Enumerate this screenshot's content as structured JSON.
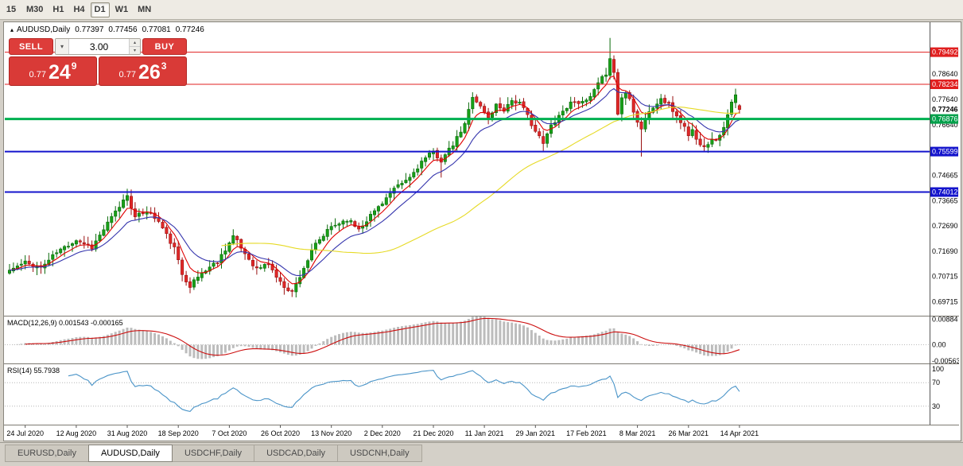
{
  "toolbar": {
    "timeframes": [
      {
        "label": "15",
        "active": false
      },
      {
        "label": "M30",
        "active": false
      },
      {
        "label": "H1",
        "active": false
      },
      {
        "label": "H4",
        "active": false
      },
      {
        "label": "D1",
        "active": true
      },
      {
        "label": "W1",
        "active": false
      },
      {
        "label": "MN",
        "active": false
      }
    ]
  },
  "chart": {
    "header": {
      "expand_icon": "▴",
      "symbol": "AUDUSD,Daily",
      "open": "0.77397",
      "high": "0.77456",
      "low": "0.77081",
      "close": "0.77246"
    },
    "one_click": {
      "sell_label": "SELL",
      "buy_label": "BUY",
      "lot_value": "3.00",
      "dropdown_icon": "▾",
      "spin_up_icon": "▴",
      "spin_down_icon": "▾",
      "sell_price": {
        "prefix": "0.77",
        "big": "24",
        "sup": "9"
      },
      "buy_price": {
        "prefix": "0.77",
        "big": "26",
        "sup": "3"
      }
    },
    "price_axis": {
      "plain_labels": [
        "0.78640",
        "0.77640",
        "0.76640",
        "0.74665",
        "0.73665",
        "0.72690",
        "0.71690",
        "0.70715",
        "0.69715"
      ],
      "badges": [
        {
          "text": "0.79492",
          "color": "#e01f1f"
        },
        {
          "text": "0.78234",
          "color": "#e01f1f"
        },
        {
          "text": "0.76876",
          "color": "#00a04a"
        },
        {
          "text": "0.75599",
          "color": "#1414cc"
        },
        {
          "text": "0.74012",
          "color": "#1414cc"
        }
      ],
      "current_price": "0.77246"
    },
    "hlines": [
      {
        "price": 0.79492,
        "color": "#e01f1f",
        "width": 1
      },
      {
        "price": 0.78234,
        "color": "#e01f1f",
        "width": 1
      },
      {
        "price": 0.76876,
        "color": "#00b050",
        "width": 3
      },
      {
        "price": 0.75599,
        "color": "#1414cc",
        "width": 2
      },
      {
        "price": 0.74012,
        "color": "#1414cc",
        "width": 2
      }
    ],
    "date_axis": [
      "24 Jul 2020",
      "12 Aug 2020",
      "31 Aug 2020",
      "18 Sep 2020",
      "7 Oct 2020",
      "26 Oct 2020",
      "13 Nov 2020",
      "2 Dec 2020",
      "21 Dec 2020",
      "11 Jan 2021",
      "29 Jan 2021",
      "17 Feb 2021",
      "8 Mar 2021",
      "26 Mar 2021",
      "14 Apr 2021"
    ],
    "indicators": {
      "macd": {
        "label": "MACD(12,26,9) 0.001543 -0.000165",
        "fast": 12,
        "slow": 26,
        "signal": 9,
        "axis_labels": [
          "0.00884",
          "0.00",
          "-0.00563"
        ],
        "histogram_color": "#bcbcbc",
        "signal_color": "#cc0e0e"
      },
      "rsi": {
        "label": "RSI(14) 55.7938",
        "period": 14,
        "axis_labels": [
          "100",
          "70",
          "30"
        ],
        "levels": [
          70,
          30
        ],
        "line_color": "#4a94c8"
      }
    }
  },
  "chart_data": {
    "type": "candlestick",
    "symbol": "AUDUSD",
    "timeframe": "Daily",
    "title": "AUDUSD,Daily",
    "n": 187,
    "seed": 11,
    "noise": 0.0018,
    "wick": 0.0026,
    "price_range": {
      "top": 0.806,
      "bottom": 0.692
    },
    "anchors": [
      [
        0,
        0.7095
      ],
      [
        4,
        0.7125
      ],
      [
        8,
        0.7105
      ],
      [
        12,
        0.7165
      ],
      [
        17,
        0.7215
      ],
      [
        21,
        0.7185
      ],
      [
        24,
        0.7255
      ],
      [
        28,
        0.7345
      ],
      [
        30,
        0.7392
      ],
      [
        32,
        0.73
      ],
      [
        35,
        0.733
      ],
      [
        38,
        0.7285
      ],
      [
        42,
        0.718
      ],
      [
        44,
        0.708
      ],
      [
        46,
        0.7035
      ],
      [
        49,
        0.7085
      ],
      [
        53,
        0.713
      ],
      [
        57,
        0.7228
      ],
      [
        60,
        0.716
      ],
      [
        63,
        0.71
      ],
      [
        66,
        0.712
      ],
      [
        69,
        0.7045
      ],
      [
        72,
        0.701
      ],
      [
        75,
        0.7105
      ],
      [
        78,
        0.7195
      ],
      [
        82,
        0.7265
      ],
      [
        86,
        0.7295
      ],
      [
        89,
        0.7258
      ],
      [
        92,
        0.731
      ],
      [
        95,
        0.7362
      ],
      [
        98,
        0.741
      ],
      [
        102,
        0.7458
      ],
      [
        105,
        0.752
      ],
      [
        108,
        0.7558
      ],
      [
        110,
        0.7525
      ],
      [
        113,
        0.7585
      ],
      [
        116,
        0.7665
      ],
      [
        118,
        0.778
      ],
      [
        120,
        0.7735
      ],
      [
        122,
        0.769
      ],
      [
        124,
        0.7742
      ],
      [
        126,
        0.7725
      ],
      [
        128,
        0.7762
      ],
      [
        130,
        0.7748
      ],
      [
        132,
        0.77
      ],
      [
        134,
        0.764
      ],
      [
        136,
        0.759
      ],
      [
        138,
        0.7662
      ],
      [
        140,
        0.7702
      ],
      [
        142,
        0.7735
      ],
      [
        144,
        0.7762
      ],
      [
        146,
        0.7748
      ],
      [
        148,
        0.7772
      ],
      [
        150,
        0.7822
      ],
      [
        152,
        0.7868
      ],
      [
        153,
        0.793
      ],
      [
        154,
        0.7868
      ],
      [
        155,
        0.7708
      ],
      [
        156,
        0.7772
      ],
      [
        157,
        0.779
      ],
      [
        158,
        0.7775
      ],
      [
        159,
        0.7722
      ],
      [
        160,
        0.7675
      ],
      [
        161,
        0.7652
      ],
      [
        162,
        0.769
      ],
      [
        163,
        0.7712
      ],
      [
        164,
        0.7732
      ],
      [
        166,
        0.7766
      ],
      [
        168,
        0.774
      ],
      [
        170,
        0.77
      ],
      [
        172,
        0.7655
      ],
      [
        173,
        0.7625
      ],
      [
        174,
        0.7645
      ],
      [
        175,
        0.7605
      ],
      [
        177,
        0.7585
      ],
      [
        179,
        0.7602
      ],
      [
        181,
        0.7618
      ],
      [
        183,
        0.7702
      ],
      [
        184,
        0.7748
      ],
      [
        185,
        0.7778
      ],
      [
        186,
        0.77246
      ]
    ],
    "wick_overrides": {
      "30": {
        "h": 0.7414
      },
      "46": {
        "l": 0.7005
      },
      "72": {
        "l": 0.699
      },
      "110": {
        "l": 0.7458
      },
      "136": {
        "l": 0.756
      },
      "153": {
        "h": 0.8005
      },
      "161": {
        "l": 0.754
      },
      "185": {
        "h": 0.7806
      }
    },
    "last_candle": {
      "o": 0.77397,
      "h": 0.77456,
      "l": 0.77081,
      "c": 0.77246
    },
    "up_color": "#18a018",
    "up_stroke": "#0a6a0a",
    "down_color": "#e02828",
    "down_stroke": "#991111",
    "moving_averages": [
      {
        "type": "ema",
        "period": 6,
        "color": "#e00000"
      },
      {
        "type": "ema",
        "period": 14,
        "color": "#3535ad"
      },
      {
        "type": "sma",
        "period": 55,
        "color": "#e6da25"
      }
    ],
    "macd_range": {
      "max": 0.0095,
      "min": -0.0062
    },
    "rsi_range": {
      "max": 100,
      "min": 0
    }
  },
  "tabs": [
    {
      "label": "EURUSD,Daily",
      "active": false
    },
    {
      "label": "AUDUSD,Daily",
      "active": true
    },
    {
      "label": "USDCHF,Daily",
      "active": false
    },
    {
      "label": "USDCAD,Daily",
      "active": false
    },
    {
      "label": "USDCNH,Daily",
      "active": false
    }
  ]
}
